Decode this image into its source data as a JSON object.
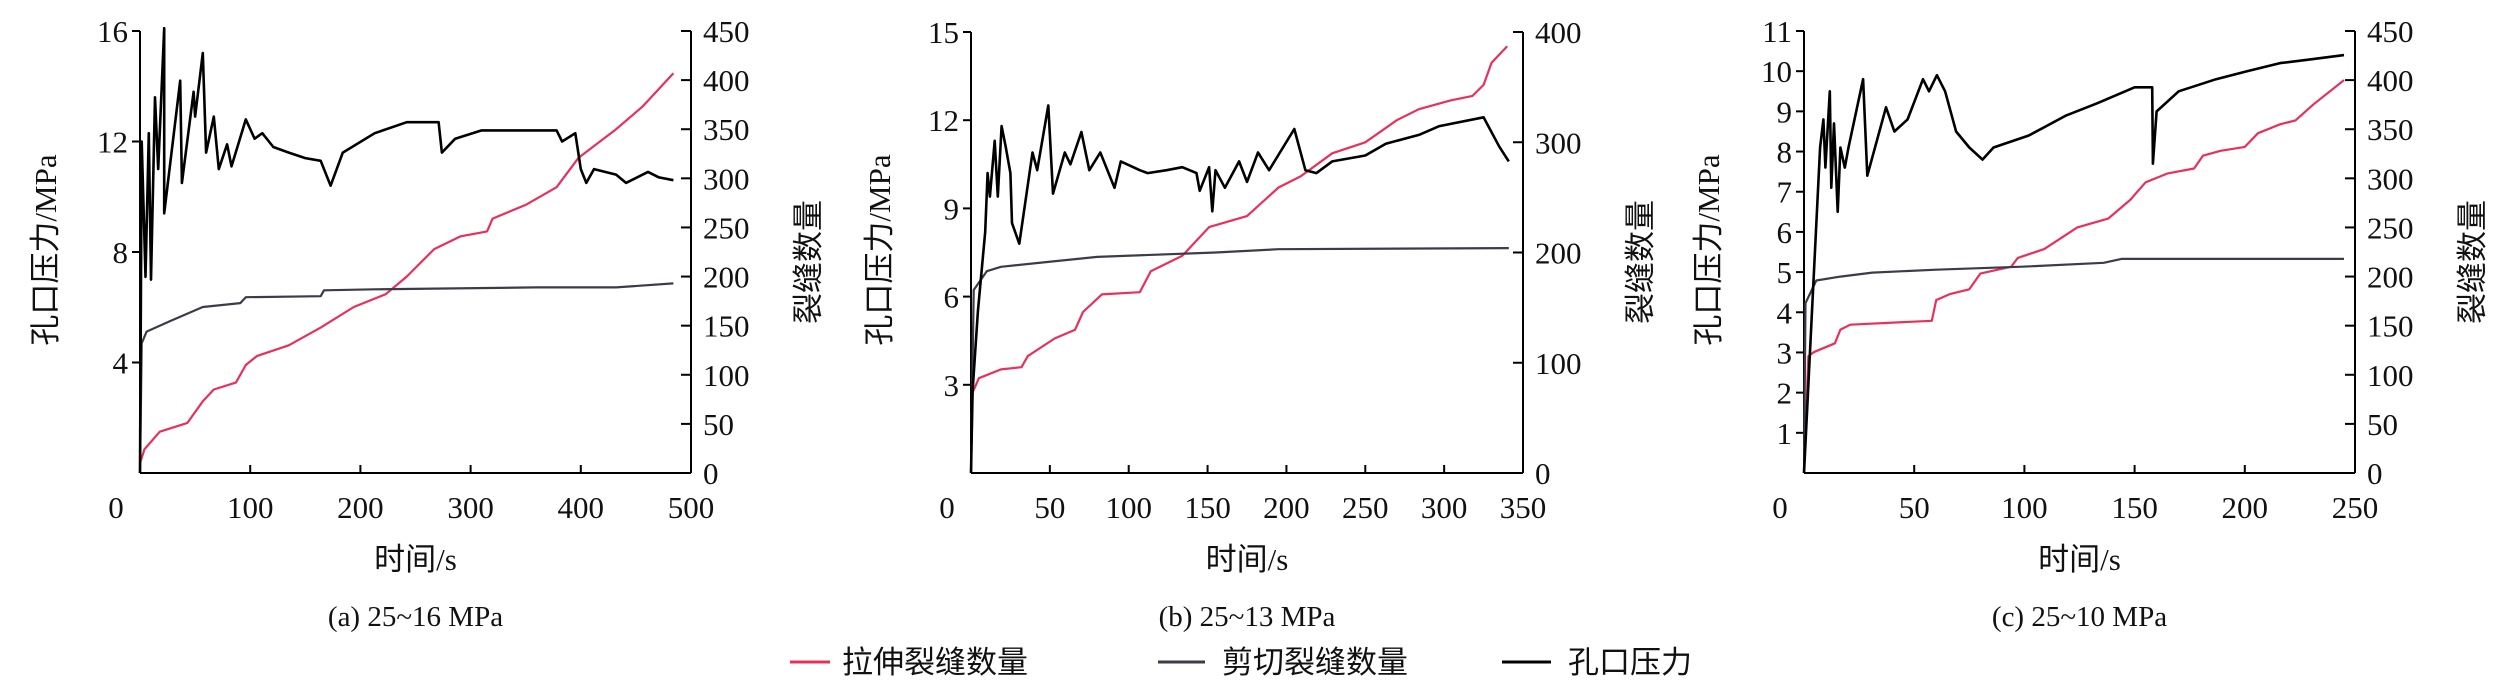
{
  "legend": {
    "items": [
      {
        "label": "拉伸裂缝数量",
        "color": "#e8305a"
      },
      {
        "label": "剪切裂缝数量",
        "color": "#3a3d48"
      },
      {
        "label": "孔口压力",
        "color": "#000000"
      }
    ]
  },
  "chart_data": [
    {
      "type": "line",
      "caption": "(a) 25~16 MPa",
      "xlabel": "时间/s",
      "ylabel": "孔口压力/MPa",
      "y2label": "裂缝数量",
      "xlim": [
        0,
        500
      ],
      "ylim": [
        0,
        16
      ],
      "y2lim": [
        0,
        450
      ],
      "xticks": [
        0,
        100,
        200,
        300,
        400,
        500
      ],
      "yticks": [
        4,
        8,
        12,
        16
      ],
      "y2ticks": [
        0,
        50,
        100,
        150,
        200,
        250,
        300,
        350,
        400,
        450
      ],
      "grid": false,
      "series": [
        {
          "name": "孔口压力",
          "axis": "left",
          "color": "#000000",
          "points": [
            [
              0,
              0
            ],
            [
              1.5,
              12
            ],
            [
              5,
              7.1
            ],
            [
              8,
              12.3
            ],
            [
              10,
              7
            ],
            [
              13.6,
              13.6
            ],
            [
              16.5,
              11
            ],
            [
              22,
              16.1
            ],
            [
              22,
              9.4
            ],
            [
              36.5,
              14.2
            ],
            [
              38,
              10.5
            ],
            [
              48.6,
              13.8
            ],
            [
              50,
              12.9
            ],
            [
              57,
              15.2
            ],
            [
              60,
              11.6
            ],
            [
              67,
              12.9
            ],
            [
              71.5,
              11
            ],
            [
              79,
              11.9
            ],
            [
              83,
              11.1
            ],
            [
              96,
              12.8
            ],
            [
              104,
              12.1
            ],
            [
              111,
              12.3
            ],
            [
              121,
              11.8
            ],
            [
              135,
              11.6
            ],
            [
              150,
              11.4
            ],
            [
              164,
              11.3
            ],
            [
              173,
              10.4
            ],
            [
              184,
              11.6
            ],
            [
              213,
              12.3
            ],
            [
              242,
              12.7
            ],
            [
              271,
              12.7
            ],
            [
              274,
              11.6
            ],
            [
              286,
              12.1
            ],
            [
              310,
              12.4
            ],
            [
              359,
              12.4
            ],
            [
              378,
              12.4
            ],
            [
              383,
              12
            ],
            [
              395,
              12.3
            ],
            [
              400,
              11
            ],
            [
              405,
              10.5
            ],
            [
              412,
              11
            ],
            [
              432,
              10.8
            ],
            [
              441,
              10.5
            ],
            [
              461,
              10.9
            ],
            [
              471,
              10.7
            ],
            [
              484,
              10.6
            ]
          ]
        },
        {
          "name": "拉伸裂缝数量",
          "axis": "right",
          "color": "#e8305a",
          "points": [
            [
              0,
              10
            ],
            [
              4,
              24
            ],
            [
              18,
              42
            ],
            [
              43,
              51
            ],
            [
              57,
              73
            ],
            [
              67,
              85
            ],
            [
              87,
              92
            ],
            [
              96,
              110
            ],
            [
              106,
              119
            ],
            [
              135,
              130
            ],
            [
              164,
              148
            ],
            [
              194,
              169
            ],
            [
              223,
              182
            ],
            [
              242,
              200
            ],
            [
              267,
              228
            ],
            [
              291,
              241
            ],
            [
              315,
              246
            ],
            [
              320,
              259
            ],
            [
              350,
              273
            ],
            [
              378,
              291
            ],
            [
              398,
              321
            ],
            [
              432,
              350
            ],
            [
              456,
              373
            ],
            [
              484,
              407
            ]
          ]
        },
        {
          "name": "剪切裂缝数量",
          "axis": "right",
          "color": "#3a3d48",
          "points": [
            [
              0,
              0
            ],
            [
              1.5,
              132
            ],
            [
              6,
              144
            ],
            [
              28,
              155
            ],
            [
              57,
              169
            ],
            [
              91,
              173
            ],
            [
              96,
              179
            ],
            [
              164,
              180
            ],
            [
              167,
              186
            ],
            [
              213,
              187
            ],
            [
              359,
              189
            ],
            [
              432,
              189
            ],
            [
              484,
              193
            ]
          ]
        }
      ]
    },
    {
      "type": "line",
      "caption": "(b) 25~13 MPa",
      "xlabel": "时间/s",
      "ylabel": "孔口压力/MPa",
      "y2label": "裂缝数量",
      "xlim": [
        0,
        350
      ],
      "ylim": [
        0,
        15
      ],
      "y2lim": [
        0,
        400
      ],
      "xticks": [
        0,
        50,
        100,
        150,
        200,
        250,
        300,
        350
      ],
      "yticks": [
        3,
        6,
        9,
        12,
        15
      ],
      "y2ticks": [
        0,
        100,
        200,
        300,
        400
      ],
      "grid": false,
      "series": [
        {
          "name": "孔口压力",
          "axis": "left",
          "color": "#000000",
          "points": [
            [
              0,
              0
            ],
            [
              1,
              2.8
            ],
            [
              4.4,
              5.5
            ],
            [
              9,
              8.2
            ],
            [
              10.5,
              10.2
            ],
            [
              12,
              9.4
            ],
            [
              15,
              11.3
            ],
            [
              17,
              9.4
            ],
            [
              19.4,
              11.8
            ],
            [
              22,
              11.1
            ],
            [
              25,
              10.2
            ],
            [
              26,
              8.5
            ],
            [
              30.6,
              7.8
            ],
            [
              39,
              10.9
            ],
            [
              42,
              10.3
            ],
            [
              49,
              12.5
            ],
            [
              52,
              9.5
            ],
            [
              59.5,
              10.9
            ],
            [
              63,
              10.5
            ],
            [
              70,
              11.6
            ],
            [
              75,
              10.3
            ],
            [
              82,
              10.9
            ],
            [
              91,
              9.7
            ],
            [
              95,
              10.6
            ],
            [
              107,
              10.3
            ],
            [
              112,
              10.2
            ],
            [
              124,
              10.3
            ],
            [
              134,
              10.4
            ],
            [
              143,
              10.2
            ],
            [
              145,
              9.6
            ],
            [
              151,
              10.4
            ],
            [
              153,
              8.9
            ],
            [
              155,
              10.3
            ],
            [
              161,
              9.7
            ],
            [
              170,
              10.6
            ],
            [
              175,
              9.9
            ],
            [
              182,
              10.9
            ],
            [
              189,
              10.3
            ],
            [
              205,
              11.7
            ],
            [
              212,
              10.3
            ],
            [
              219,
              10.2
            ],
            [
              229,
              10.6
            ],
            [
              250,
              10.8
            ],
            [
              263,
              11.2
            ],
            [
              284,
              11.5
            ],
            [
              297,
              11.8
            ],
            [
              325,
              12.1
            ],
            [
              328,
              11.8
            ],
            [
              335,
              11.1
            ],
            [
              341,
              10.6
            ]
          ]
        },
        {
          "name": "拉伸裂缝数量",
          "axis": "right",
          "color": "#e8305a",
          "points": [
            [
              0,
              0
            ],
            [
              1,
              73
            ],
            [
              5,
              86
            ],
            [
              19,
              94
            ],
            [
              32,
              96
            ],
            [
              36,
              106
            ],
            [
              53,
              122
            ],
            [
              66,
              130
            ],
            [
              71,
              146
            ],
            [
              83,
              162
            ],
            [
              107,
              164
            ],
            [
              114,
              183
            ],
            [
              134,
              197
            ],
            [
              151,
              223
            ],
            [
              175,
              233
            ],
            [
              195,
              259
            ],
            [
              209,
              269
            ],
            [
              229,
              290
            ],
            [
              250,
              300
            ],
            [
              270,
              320
            ],
            [
              284,
              330
            ],
            [
              304,
              338
            ],
            [
              318,
              342
            ],
            [
              325,
              352
            ],
            [
              330,
              372
            ],
            [
              340,
              387
            ]
          ]
        },
        {
          "name": "剪切裂缝数量",
          "axis": "right",
          "color": "#3a3d48",
          "points": [
            [
              0,
              0
            ],
            [
              1.7,
              166
            ],
            [
              10,
              183
            ],
            [
              19,
              187
            ],
            [
              46,
              191
            ],
            [
              80,
              196
            ],
            [
              155,
              200
            ],
            [
              195,
              203
            ],
            [
              341,
              204
            ]
          ]
        }
      ]
    },
    {
      "type": "line",
      "caption": "(c) 25~10 MPa",
      "xlabel": "时间/s",
      "ylabel": "孔口压力/MPa",
      "y2label": "裂缝数量",
      "xlim": [
        0,
        250
      ],
      "ylim": [
        0,
        11
      ],
      "y2lim": [
        0,
        450
      ],
      "xticks": [
        0,
        50,
        100,
        150,
        200,
        250
      ],
      "yticks": [
        1,
        2,
        3,
        4,
        5,
        6,
        7,
        8,
        9,
        10,
        11
      ],
      "y2ticks": [
        0,
        50,
        100,
        150,
        200,
        250,
        300,
        350,
        400,
        450
      ],
      "grid": false,
      "series": [
        {
          "name": "孔口压力",
          "axis": "left",
          "color": "#000000",
          "points": [
            [
              0,
              0
            ],
            [
              7.3,
              8.1
            ],
            [
              8.8,
              8.8
            ],
            [
              9.7,
              7.6
            ],
            [
              11.7,
              9.5
            ],
            [
              12.4,
              7.1
            ],
            [
              13.6,
              8.7
            ],
            [
              15.3,
              6.5
            ],
            [
              16.5,
              8.1
            ],
            [
              18.5,
              7.6
            ],
            [
              20.2,
              8.1
            ],
            [
              26.8,
              9.8
            ],
            [
              28.7,
              7.4
            ],
            [
              37.2,
              9.1
            ],
            [
              41,
              8.5
            ],
            [
              47,
              8.8
            ],
            [
              54,
              9.8
            ],
            [
              56.7,
              9.5
            ],
            [
              60.3,
              9.9
            ],
            [
              64,
              9.5
            ],
            [
              69,
              8.5
            ],
            [
              75,
              8.1
            ],
            [
              81,
              7.8
            ],
            [
              86,
              8.1
            ],
            [
              102,
              8.4
            ],
            [
              119,
              8.9
            ],
            [
              133,
              9.2
            ],
            [
              150,
              9.6
            ],
            [
              158,
              9.6
            ],
            [
              158.3,
              7.7
            ],
            [
              160,
              9.0
            ],
            [
              170,
              9.5
            ],
            [
              187,
              9.8
            ],
            [
              201,
              10.0
            ],
            [
              216,
              10.2
            ],
            [
              231,
              10.3
            ],
            [
              245,
              10.4
            ]
          ]
        },
        {
          "name": "拉伸裂缝数量",
          "axis": "right",
          "color": "#e8305a",
          "points": [
            [
              0,
              0
            ],
            [
              2,
              119
            ],
            [
              4.4,
              123
            ],
            [
              14,
              132
            ],
            [
              16.5,
              146
            ],
            [
              21,
              151
            ],
            [
              58,
              155
            ],
            [
              60,
              176
            ],
            [
              66,
              182
            ],
            [
              75,
              187
            ],
            [
              80,
              203
            ],
            [
              94,
              210
            ],
            [
              97,
              219
            ],
            [
              109,
              228
            ],
            [
              124,
              250
            ],
            [
              138,
              259
            ],
            [
              148,
              278
            ],
            [
              155,
              296
            ],
            [
              165,
              305
            ],
            [
              177,
              310
            ],
            [
              181,
              323
            ],
            [
              189,
              328
            ],
            [
              200,
              332
            ],
            [
              206,
              346
            ],
            [
              216,
              355
            ],
            [
              223,
              359
            ],
            [
              231,
              375
            ],
            [
              245,
              400
            ]
          ]
        },
        {
          "name": "剪切裂缝数量",
          "axis": "right",
          "color": "#3a3d48",
          "points": [
            [
              0,
              0
            ],
            [
              0.7,
              173
            ],
            [
              5.6,
              196
            ],
            [
              16.5,
              200
            ],
            [
              31,
              204
            ],
            [
              60,
              207
            ],
            [
              99,
              210
            ],
            [
              136,
              214
            ],
            [
              144,
              218
            ],
            [
              245,
              218
            ]
          ]
        }
      ]
    }
  ]
}
